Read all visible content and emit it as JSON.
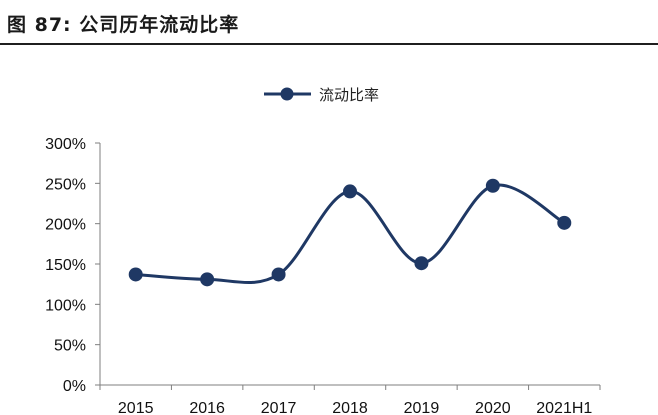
{
  "figure": {
    "title": "图 87: 公司历年流动比率"
  },
  "chart_data": {
    "type": "line",
    "categories": [
      "2015",
      "2016",
      "2017",
      "2018",
      "2019",
      "2020",
      "2021H1"
    ],
    "series": [
      {
        "name": "流动比率",
        "values": [
          137,
          131,
          137,
          240,
          151,
          247,
          201
        ],
        "color": "#1f3864"
      }
    ],
    "yticks": [
      "0%",
      "50%",
      "100%",
      "150%",
      "200%",
      "250%",
      "300%"
    ],
    "ylim": [
      0,
      300
    ],
    "ylabel": "",
    "xlabel": "",
    "smooth": true,
    "markers": "circle",
    "grid": false,
    "legend_position": "top-center"
  }
}
